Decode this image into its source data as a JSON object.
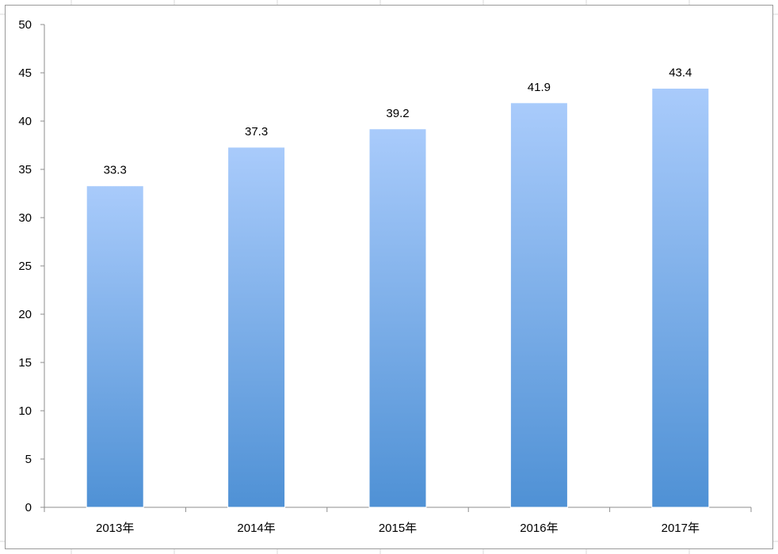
{
  "colors": {
    "bar_top": "#a9cbfb",
    "bar_bottom": "#4f91d5",
    "axis": "#8c8c8c",
    "sheet_grid": "#d9d9d9"
  },
  "chart_data": {
    "type": "bar",
    "categories": [
      "2013年",
      "2014年",
      "2015年",
      "2016年",
      "2017年"
    ],
    "values": [
      33.3,
      37.3,
      39.2,
      41.9,
      43.4
    ],
    "data_labels": [
      "33.3",
      "37.3",
      "39.2",
      "41.9",
      "43.4"
    ],
    "title": "",
    "xlabel": "",
    "ylabel": "",
    "ylim": [
      0,
      50
    ],
    "y_ticks": [
      "0",
      "5",
      "10",
      "15",
      "20",
      "25",
      "30",
      "35",
      "40",
      "45",
      "50"
    ],
    "grid": false,
    "legend": "none"
  }
}
